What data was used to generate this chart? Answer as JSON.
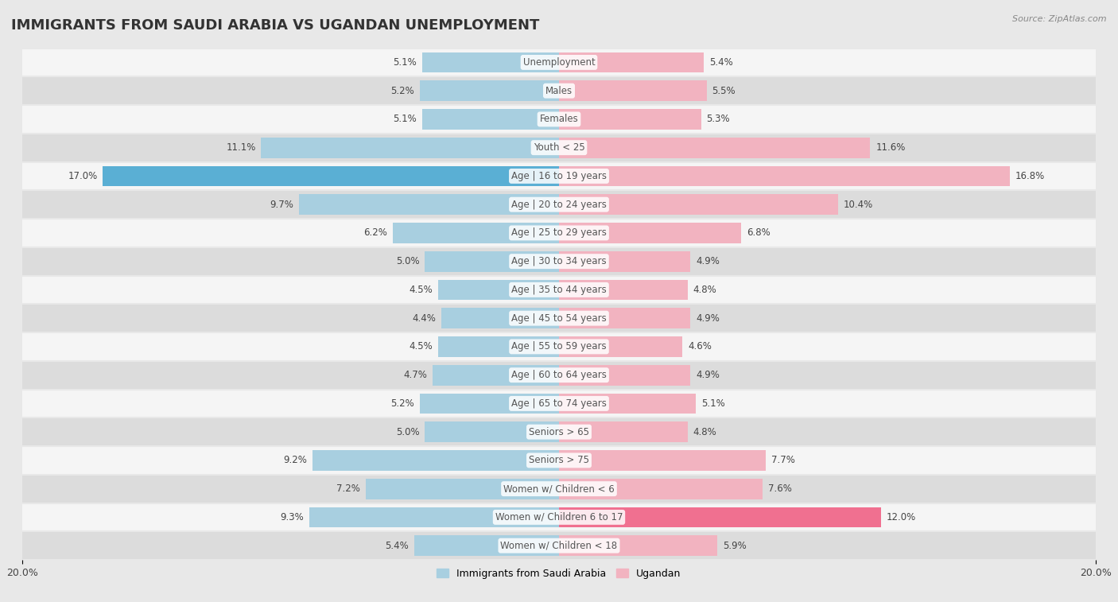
{
  "title": "IMMIGRANTS FROM SAUDI ARABIA VS UGANDAN UNEMPLOYMENT",
  "source": "Source: ZipAtlas.com",
  "categories": [
    "Unemployment",
    "Males",
    "Females",
    "Youth < 25",
    "Age | 16 to 19 years",
    "Age | 20 to 24 years",
    "Age | 25 to 29 years",
    "Age | 30 to 34 years",
    "Age | 35 to 44 years",
    "Age | 45 to 54 years",
    "Age | 55 to 59 years",
    "Age | 60 to 64 years",
    "Age | 65 to 74 years",
    "Seniors > 65",
    "Seniors > 75",
    "Women w/ Children < 6",
    "Women w/ Children 6 to 17",
    "Women w/ Children < 18"
  ],
  "saudi_values": [
    5.1,
    5.2,
    5.1,
    11.1,
    17.0,
    9.7,
    6.2,
    5.0,
    4.5,
    4.4,
    4.5,
    4.7,
    5.2,
    5.0,
    9.2,
    7.2,
    9.3,
    5.4
  ],
  "ugandan_values": [
    5.4,
    5.5,
    5.3,
    11.6,
    16.8,
    10.4,
    6.8,
    4.9,
    4.8,
    4.9,
    4.6,
    4.9,
    5.1,
    4.8,
    7.7,
    7.6,
    12.0,
    5.9
  ],
  "saudi_color": "#a8cfe0",
  "ugandan_color": "#f2b3c0",
  "saudi_highlight_color": "#5aafd4",
  "ugandan_highlight_color": "#f07090",
  "bar_height": 0.72,
  "xlim": 20.0,
  "bg_color": "#e8e8e8",
  "row_color_light": "#f5f5f5",
  "row_color_dark": "#dcdcdc",
  "legend_saudi": "Immigrants from Saudi Arabia",
  "legend_ugandan": "Ugandan",
  "title_fontsize": 13,
  "label_fontsize": 8.5,
  "value_fontsize": 8.5,
  "axis_fontsize": 9,
  "source_fontsize": 8,
  "highlight_saudi_indices": [
    4
  ],
  "highlight_ugandan_indices": [
    16
  ]
}
